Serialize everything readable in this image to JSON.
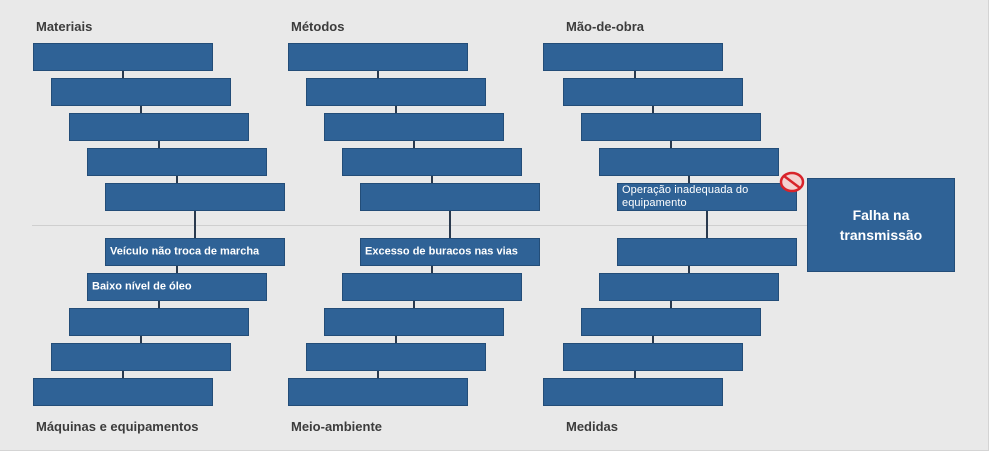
{
  "diagram": {
    "categories": {
      "materials": "Materiais",
      "methods": "Métodos",
      "labor": "Mão-de-obra",
      "machines": "Máquinas e equipamentos",
      "environment": "Meio-ambiente",
      "measures": "Medidas"
    },
    "causes": {
      "machines_1": "Veículo não troca de marcha",
      "machines_2": "Baixo nível de óleo",
      "environment_1": "Excesso de buracos nas vias",
      "labor_1": "Operação inadequada do equipamento"
    },
    "effect": "Falha na transmissão",
    "colors": {
      "box": "#2f6296",
      "background": "#e9e9e9",
      "connector": "#2a3a4e",
      "no_symbol": "#d8232a"
    },
    "icons": {
      "labor_1_marker": "no-entry-icon"
    }
  }
}
